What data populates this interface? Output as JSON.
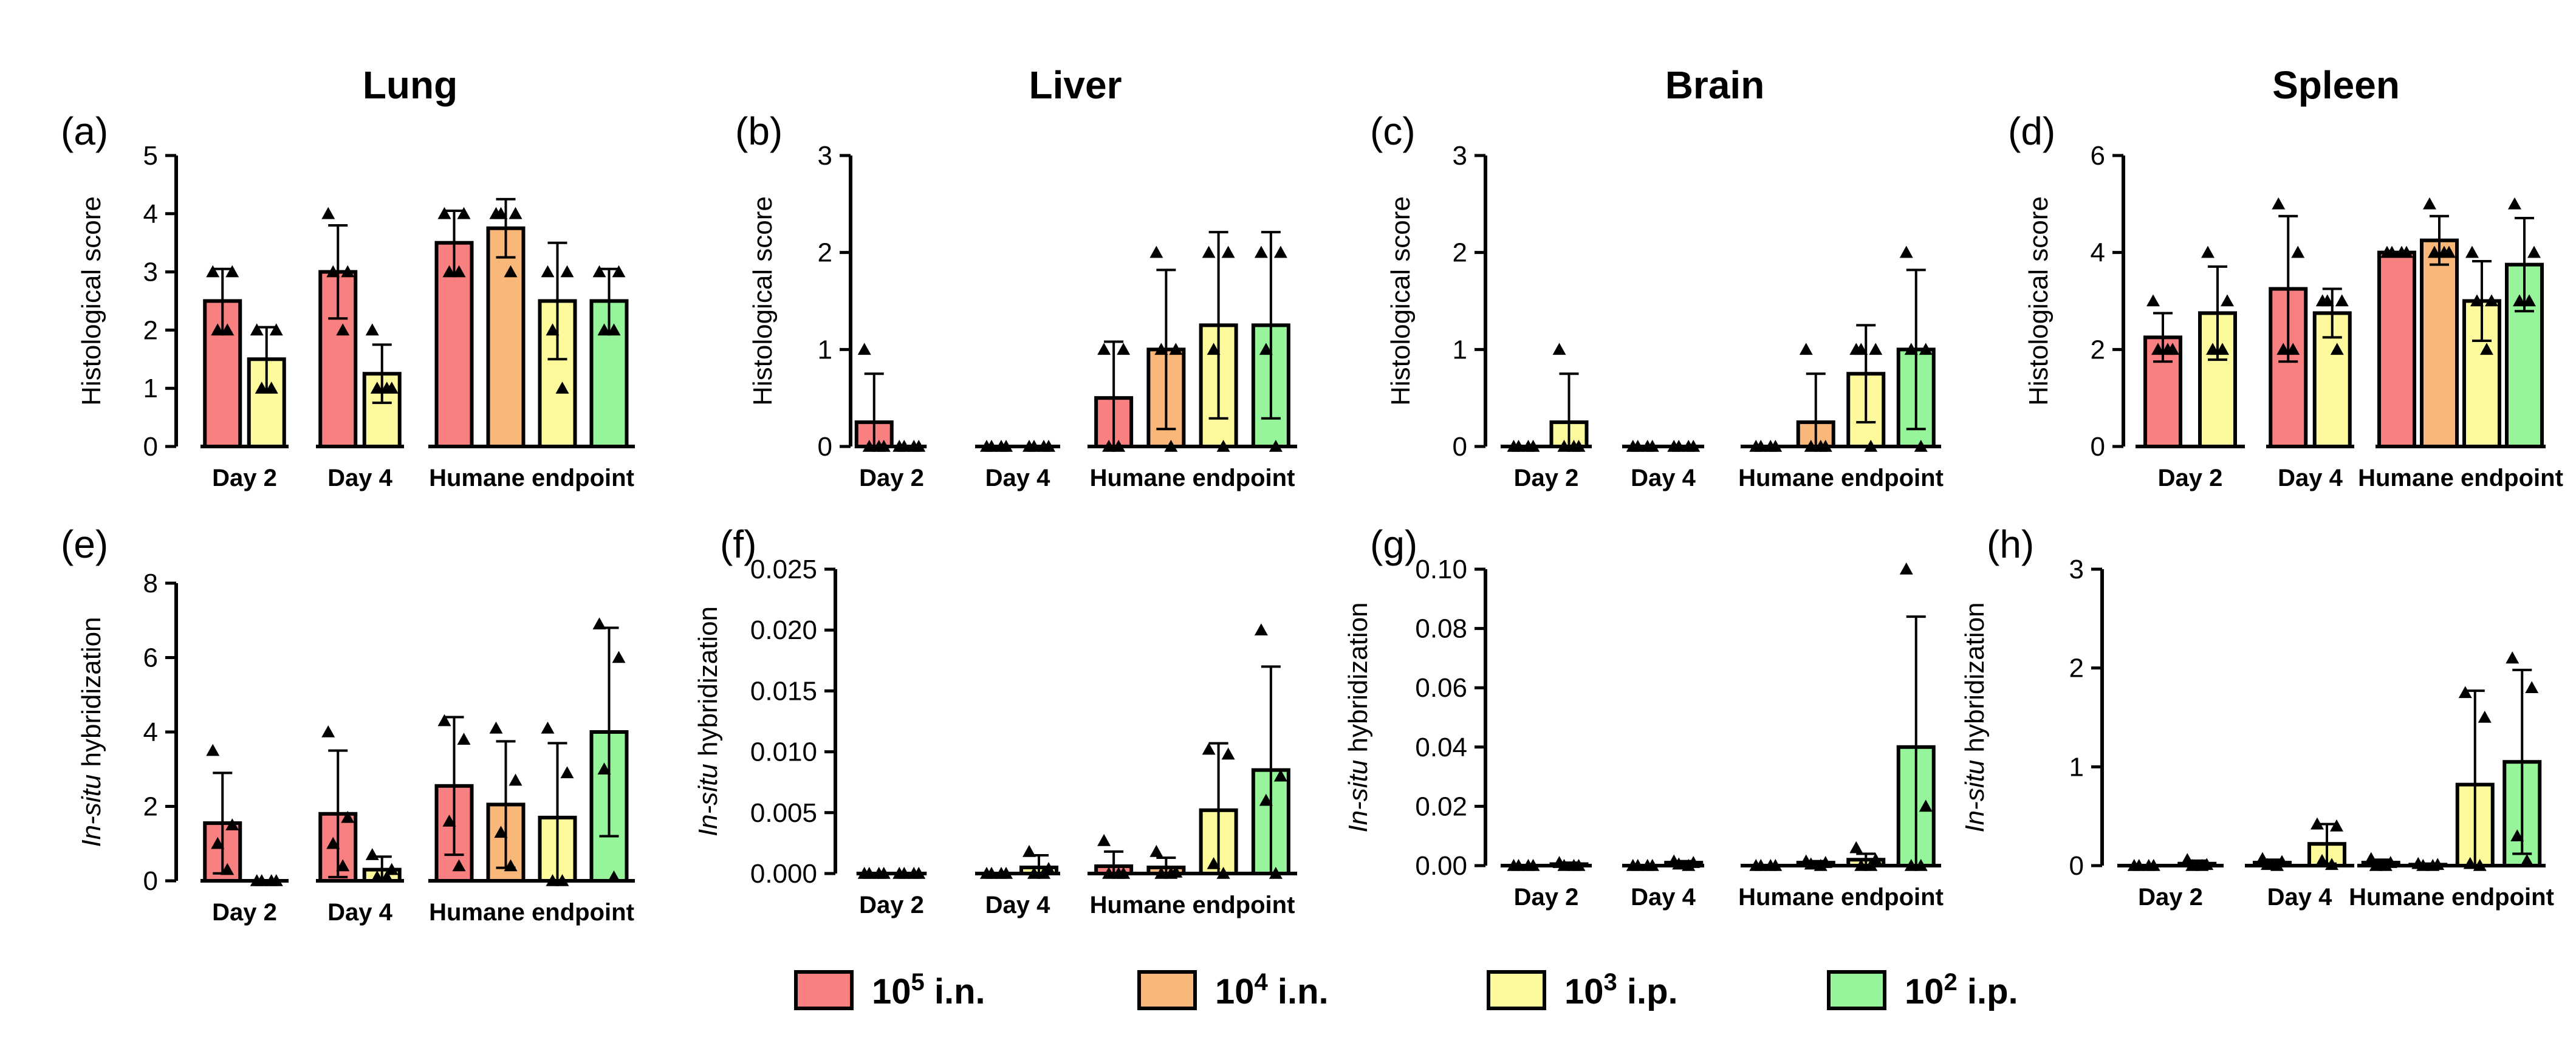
{
  "legend": [
    {
      "base": "10",
      "exp": "5",
      "route": " i.n.",
      "color": "#f98080"
    },
    {
      "base": "10",
      "exp": "4",
      "route": " i.n.",
      "color": "#f9b87a"
    },
    {
      "base": "10",
      "exp": "3",
      "route": " i.p.",
      "color": "#fdfa9e"
    },
    {
      "base": "10",
      "exp": "2",
      "route": " i.p.",
      "color": "#96f49a"
    }
  ],
  "chart_data": [
    {
      "type": "bar",
      "panel": "(a)",
      "title": "Lung",
      "ylabel": "Histological score",
      "ylim": [
        0,
        5
      ],
      "yticks": [
        "0",
        "1",
        "2",
        "3",
        "4",
        "5"
      ],
      "categories": [
        "Day 2",
        "Day 4",
        "Humane endpoint"
      ],
      "groups": [
        {
          "bars": [
            {
              "series": 0,
              "value": 2.5,
              "sd": 0.55,
              "points": [
                3,
                3,
                2,
                2
              ]
            },
            {
              "series": 2,
              "value": 1.5,
              "sd": 0.55,
              "points": [
                2,
                2,
                1,
                1
              ]
            }
          ]
        },
        {
          "bars": [
            {
              "series": 0,
              "value": 3.0,
              "sd": 0.8,
              "points": [
                4,
                3,
                3,
                2
              ]
            },
            {
              "series": 2,
              "value": 1.25,
              "sd": 0.5,
              "points": [
                2,
                1,
                1,
                1
              ]
            }
          ]
        },
        {
          "bars": [
            {
              "series": 0,
              "value": 3.5,
              "sd": 0.55,
              "points": [
                4,
                4,
                3,
                3
              ]
            },
            {
              "series": 1,
              "value": 3.75,
              "sd": 0.5,
              "points": [
                4,
                4,
                4,
                3
              ]
            },
            {
              "series": 2,
              "value": 2.5,
              "sd": 1.0,
              "points": [
                3,
                3,
                2,
                1
              ]
            },
            {
              "series": 3,
              "value": 2.5,
              "sd": 0.55,
              "points": [
                3,
                3,
                2,
                2
              ]
            }
          ]
        }
      ]
    },
    {
      "type": "bar",
      "panel": "(b)",
      "title": "Liver",
      "ylabel": "Histological score",
      "ylim": [
        0,
        3
      ],
      "yticks": [
        "0",
        "1",
        "2",
        "3"
      ],
      "categories": [
        "Day 2",
        "Day 4",
        "Humane endpoint"
      ],
      "groups": [
        {
          "bars": [
            {
              "series": 0,
              "value": 0.25,
              "sd": 0.5,
              "points": [
                1,
                0,
                0,
                0
              ]
            },
            {
              "series": 2,
              "value": 0,
              "sd": 0,
              "points": [
                0,
                0,
                0,
                0
              ]
            }
          ]
        },
        {
          "bars": [
            {
              "series": 0,
              "value": 0,
              "sd": 0,
              "points": [
                0,
                0,
                0,
                0
              ]
            },
            {
              "series": 2,
              "value": 0,
              "sd": 0,
              "points": [
                0,
                0,
                0,
                0
              ]
            }
          ]
        },
        {
          "bars": [
            {
              "series": 0,
              "value": 0.5,
              "sd": 0.58,
              "points": [
                1,
                1,
                0,
                0
              ]
            },
            {
              "series": 1,
              "value": 1.0,
              "sd": 0.82,
              "points": [
                2,
                1,
                1,
                0
              ]
            },
            {
              "series": 2,
              "value": 1.25,
              "sd": 0.96,
              "points": [
                2,
                2,
                1,
                0
              ]
            },
            {
              "series": 3,
              "value": 1.25,
              "sd": 0.96,
              "points": [
                2,
                2,
                1,
                0
              ]
            }
          ]
        }
      ]
    },
    {
      "type": "bar",
      "panel": "(c)",
      "title": "Brain",
      "ylabel": "Histological score",
      "ylim": [
        0,
        3
      ],
      "yticks": [
        "0",
        "1",
        "2",
        "3"
      ],
      "categories": [
        "Day 2",
        "Day 4",
        "Humane endpoint"
      ],
      "groups": [
        {
          "bars": [
            {
              "series": 0,
              "value": 0,
              "sd": 0,
              "points": [
                0,
                0,
                0,
                0
              ]
            },
            {
              "series": 2,
              "value": 0.25,
              "sd": 0.5,
              "points": [
                1,
                0,
                0,
                0
              ]
            }
          ]
        },
        {
          "bars": [
            {
              "series": 0,
              "value": 0,
              "sd": 0,
              "points": [
                0,
                0,
                0,
                0
              ]
            },
            {
              "series": 2,
              "value": 0,
              "sd": 0,
              "points": [
                0,
                0,
                0,
                0
              ]
            }
          ]
        },
        {
          "bars": [
            {
              "series": 0,
              "value": 0,
              "sd": 0,
              "points": [
                0,
                0,
                0,
                0
              ]
            },
            {
              "series": 1,
              "value": 0.25,
              "sd": 0.5,
              "points": [
                1,
                0,
                0,
                0
              ]
            },
            {
              "series": 2,
              "value": 0.75,
              "sd": 0.5,
              "points": [
                1,
                1,
                1,
                0
              ]
            },
            {
              "series": 3,
              "value": 1.0,
              "sd": 0.82,
              "points": [
                2,
                1,
                1,
                0
              ]
            }
          ]
        }
      ]
    },
    {
      "type": "bar",
      "panel": "(d)",
      "title": "Spleen",
      "ylabel": "Histological score",
      "ylim": [
        0,
        6
      ],
      "yticks": [
        "0",
        "2",
        "4",
        "6"
      ],
      "categories": [
        "Day 2",
        "Day 4",
        "Humane endpoint"
      ],
      "groups": [
        {
          "bars": [
            {
              "series": 0,
              "value": 2.25,
              "sd": 0.5,
              "points": [
                3,
                2,
                2,
                2
              ]
            },
            {
              "series": 2,
              "value": 2.75,
              "sd": 0.96,
              "points": [
                4,
                3,
                2,
                2
              ]
            }
          ]
        },
        {
          "bars": [
            {
              "series": 0,
              "value": 3.25,
              "sd": 1.5,
              "points": [
                5,
                4,
                2,
                2
              ]
            },
            {
              "series": 2,
              "value": 2.75,
              "sd": 0.5,
              "points": [
                3,
                3,
                3,
                2
              ]
            }
          ]
        },
        {
          "bars": [
            {
              "series": 0,
              "value": 4.0,
              "sd": 0,
              "points": [
                4,
                4,
                4,
                4
              ]
            },
            {
              "series": 1,
              "value": 4.25,
              "sd": 0.5,
              "points": [
                5,
                4,
                4,
                4
              ]
            },
            {
              "series": 2,
              "value": 3.0,
              "sd": 0.82,
              "points": [
                4,
                3,
                3,
                2
              ]
            },
            {
              "series": 3,
              "value": 3.75,
              "sd": 0.96,
              "points": [
                5,
                4,
                3,
                3
              ]
            }
          ]
        }
      ]
    },
    {
      "type": "bar",
      "panel": "(e)",
      "title": "",
      "ylabel_italic": "In-situ",
      "ylabel": " hybridization",
      "ylim": [
        0,
        8
      ],
      "yticks": [
        "0",
        "2",
        "4",
        "6",
        "8"
      ],
      "categories": [
        "Day 2",
        "Day 4",
        "Humane endpoint"
      ],
      "groups": [
        {
          "bars": [
            {
              "series": 0,
              "value": 1.55,
              "sd": 1.35,
              "points": [
                3.5,
                1.5,
                1.0,
                0.3
              ]
            },
            {
              "series": 2,
              "value": 0,
              "sd": 0,
              "points": [
                0,
                0,
                0,
                0
              ]
            }
          ]
        },
        {
          "bars": [
            {
              "series": 0,
              "value": 1.8,
              "sd": 1.7,
              "points": [
                4.0,
                1.7,
                1.0,
                0.4
              ]
            },
            {
              "series": 2,
              "value": 0.3,
              "sd": 0.35,
              "points": [
                0.7,
                0.3,
                0.1,
                0.1
              ]
            }
          ]
        },
        {
          "bars": [
            {
              "series": 0,
              "value": 2.55,
              "sd": 1.85,
              "points": [
                4.3,
                3.8,
                1.6,
                0.4
              ]
            },
            {
              "series": 1,
              "value": 2.05,
              "sd": 1.7,
              "points": [
                4.1,
                2.7,
                1.3,
                0.4
              ]
            },
            {
              "series": 2,
              "value": 1.7,
              "sd": 2.0,
              "points": [
                4.1,
                2.9,
                0.0,
                0.0
              ]
            },
            {
              "series": 3,
              "value": 4.0,
              "sd": 2.8,
              "points": [
                6.9,
                6.0,
                3.0,
                0.1
              ]
            }
          ]
        }
      ]
    },
    {
      "type": "bar",
      "panel": "(f)",
      "title": "",
      "ylabel_italic": "In-situ",
      "ylabel": " hybridization",
      "ylim": [
        0,
        0.025
      ],
      "yticks": [
        "0.000",
        "0.005",
        "0.010",
        "0.015",
        "0.020",
        "0.025"
      ],
      "categories": [
        "Day 2",
        "Day 4",
        "Humane endpoint"
      ],
      "groups": [
        {
          "bars": [
            {
              "series": 0,
              "value": 0,
              "sd": 0,
              "points": [
                0,
                0,
                0,
                0
              ]
            },
            {
              "series": 2,
              "value": 0,
              "sd": 0,
              "points": [
                0,
                0,
                0,
                0
              ]
            }
          ]
        },
        {
          "bars": [
            {
              "series": 0,
              "value": 0,
              "sd": 0,
              "points": [
                0,
                0,
                0,
                0
              ]
            },
            {
              "series": 2,
              "value": 0.0005,
              "sd": 0.001,
              "points": [
                0.0018,
                0.0004,
                0,
                0
              ]
            }
          ]
        },
        {
          "bars": [
            {
              "series": 0,
              "value": 0.0006,
              "sd": 0.0012,
              "points": [
                0.0027,
                0,
                0,
                0
              ]
            },
            {
              "series": 1,
              "value": 0.0005,
              "sd": 0.0008,
              "points": [
                0.0018,
                0.0001,
                0,
                0
              ]
            },
            {
              "series": 2,
              "value": 0.0052,
              "sd": 0.0055,
              "points": [
                0.0102,
                0.0098,
                0.0008,
                0
              ]
            },
            {
              "series": 3,
              "value": 0.0085,
              "sd": 0.0085,
              "points": [
                0.02,
                0.008,
                0.006,
                0
              ]
            }
          ]
        }
      ]
    },
    {
      "type": "bar",
      "panel": "(g)",
      "title": "",
      "ylabel_italic": "In-situ",
      "ylabel": " hybridization",
      "ylim": [
        0,
        0.1
      ],
      "yticks": [
        "0.00",
        "0.02",
        "0.04",
        "0.06",
        "0.08",
        "0.10"
      ],
      "categories": [
        "Day 2",
        "Day 4",
        "Humane endpoint"
      ],
      "groups": [
        {
          "bars": [
            {
              "series": 0,
              "value": 0,
              "sd": 0,
              "points": [
                0,
                0,
                0,
                0
              ]
            },
            {
              "series": 2,
              "value": 0.0005,
              "sd": 0.0005,
              "points": [
                0.001,
                0,
                0,
                0
              ]
            }
          ]
        },
        {
          "bars": [
            {
              "series": 0,
              "value": 0,
              "sd": 0,
              "points": [
                0,
                0,
                0,
                0
              ]
            },
            {
              "series": 2,
              "value": 0.001,
              "sd": 0.0005,
              "points": [
                0.0015,
                0.001,
                0.0005,
                0
              ]
            }
          ]
        },
        {
          "bars": [
            {
              "series": 0,
              "value": 0,
              "sd": 0,
              "points": [
                0,
                0,
                0,
                0
              ]
            },
            {
              "series": 1,
              "value": 0.001,
              "sd": 0.0005,
              "points": [
                0.0015,
                0.001,
                0.0005,
                0
              ]
            },
            {
              "series": 2,
              "value": 0.002,
              "sd": 0.002,
              "points": [
                0.006,
                0.002,
                0,
                0
              ]
            },
            {
              "series": 3,
              "value": 0.04,
              "sd": 0.044,
              "points": [
                0.1,
                0.02,
                0,
                0
              ]
            }
          ]
        }
      ]
    },
    {
      "type": "bar",
      "panel": "(h)",
      "title": "",
      "ylabel_italic": "In-situ",
      "ylabel": " hybridization",
      "ylim": [
        0,
        3
      ],
      "yticks": [
        "0",
        "1",
        "2",
        "3"
      ],
      "categories": [
        "Day 2",
        "Day 4",
        "Humane endpoint"
      ],
      "groups": [
        {
          "bars": [
            {
              "series": 0,
              "value": 0,
              "sd": 0,
              "points": [
                0,
                0,
                0,
                0
              ]
            },
            {
              "series": 2,
              "value": 0.02,
              "sd": 0.03,
              "points": [
                0.06,
                0.01,
                0,
                0
              ]
            }
          ]
        },
        {
          "bars": [
            {
              "series": 0,
              "value": 0.03,
              "sd": 0.03,
              "points": [
                0.07,
                0.04,
                0.01,
                0
              ]
            },
            {
              "series": 2,
              "value": 0.22,
              "sd": 0.2,
              "points": [
                0.42,
                0.4,
                0.05,
                0.01
              ]
            }
          ]
        },
        {
          "bars": [
            {
              "series": 0,
              "value": 0.03,
              "sd": 0.03,
              "points": [
                0.07,
                0.03,
                0,
                0
              ]
            },
            {
              "series": 1,
              "value": 0.01,
              "sd": 0.01,
              "points": [
                0.02,
                0.01,
                0,
                0
              ]
            },
            {
              "series": 2,
              "value": 0.82,
              "sd": 0.95,
              "points": [
                1.75,
                1.5,
                0.02,
                0
              ]
            },
            {
              "series": 3,
              "value": 1.05,
              "sd": 0.93,
              "points": [
                2.1,
                1.8,
                0.3,
                0.05
              ]
            }
          ]
        }
      ]
    }
  ]
}
